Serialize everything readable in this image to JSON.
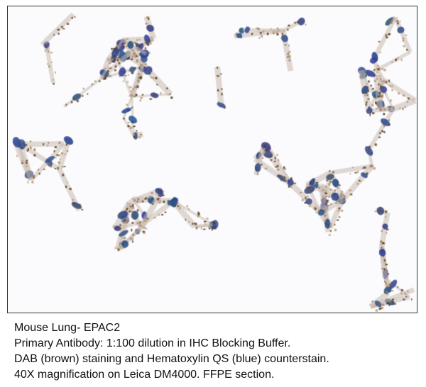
{
  "figure": {
    "image_subject": "micrograph",
    "stain_colors": {
      "dab": "#6b4a22",
      "hematoxylin": "#2f4a80"
    },
    "caption": {
      "line1": "Mouse Lung- EPAC2",
      "line2_label": "Primary Antibody:",
      "line2_value": "1:100 dilution in IHC Blocking Buffer.",
      "line3": "DAB (brown) staining and Hematoxylin QS (blue) counterstain.",
      "line4": "40X magnification on Leica DM4000. FFPE section."
    }
  }
}
